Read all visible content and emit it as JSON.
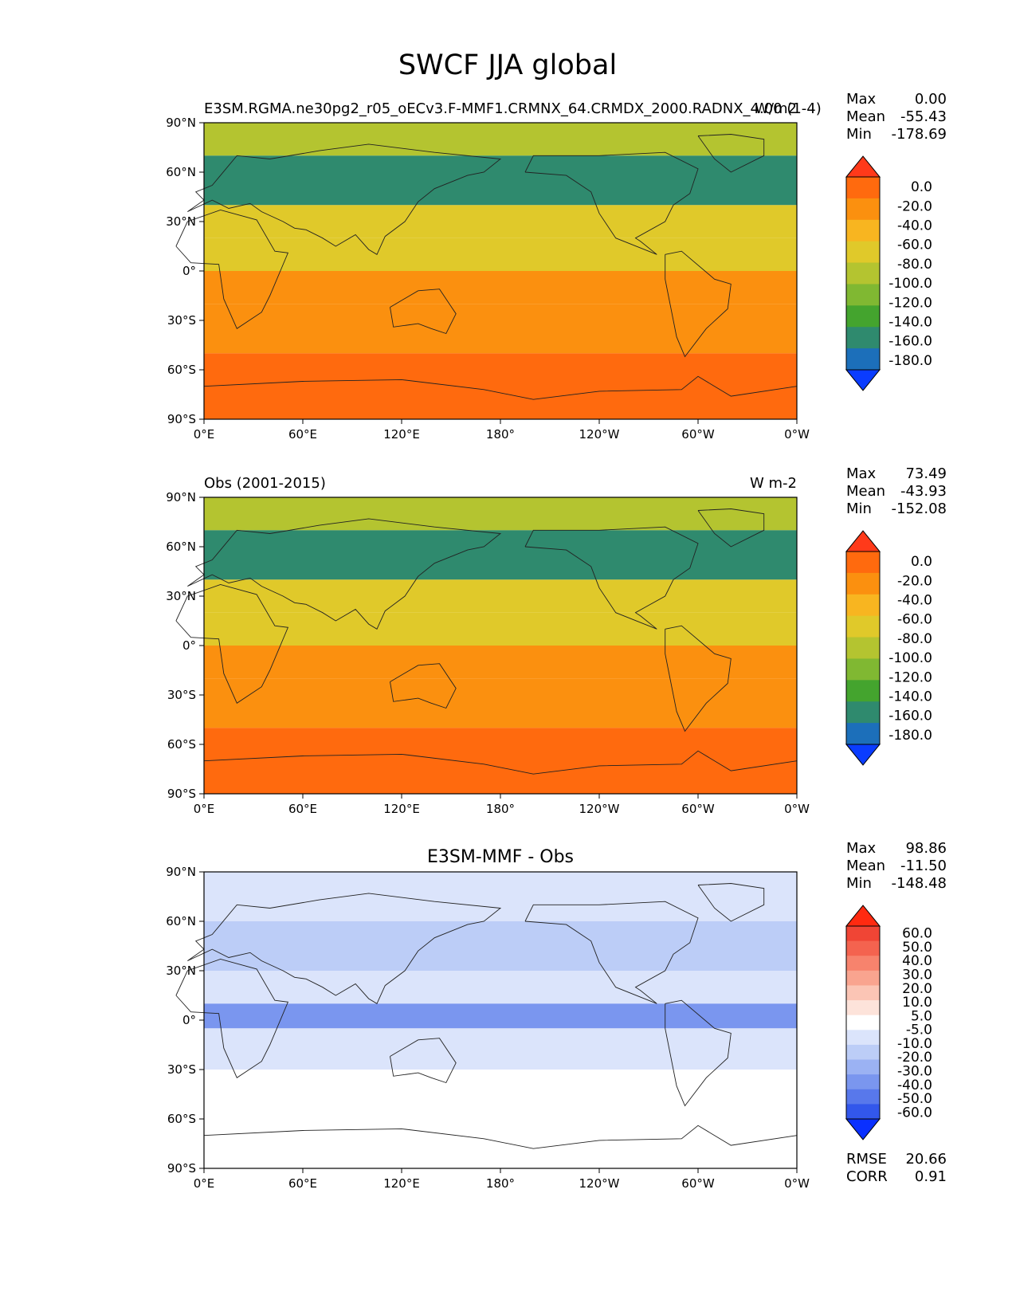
{
  "figure": {
    "title": "SWCF JJA global"
  },
  "chart_data": [
    {
      "type": "heatmap",
      "title_left": "E3SM.RGMA.ne30pg2_r05_oECv3.F-MMF1.CRMNX_64.CRMDX_2000.RADNX_4.00 (1-4)",
      "title_center": "",
      "units": "W/m2",
      "x_ticks": [
        "0°E",
        "60°E",
        "120°E",
        "180°",
        "120°W",
        "60°W",
        "0°W"
      ],
      "y_ticks": [
        "90°N",
        "60°N",
        "30°N",
        "0°",
        "30°S",
        "60°S",
        "90°S"
      ],
      "xlim": [
        0,
        360
      ],
      "ylim": [
        -90,
        90
      ],
      "stats": [
        {
          "label": "Max",
          "value": "0.00"
        },
        {
          "label": "Mean",
          "value": "-55.43"
        },
        {
          "label": "Min",
          "value": "-178.69"
        }
      ],
      "colorbar": {
        "levels": [
          "0.0",
          "-20.0",
          "-40.0",
          "-60.0",
          "-80.0",
          "-100.0",
          "-120.0",
          "-140.0",
          "-160.0",
          "-180.0"
        ],
        "colors": [
          "#ff3a1a",
          "#ff6a0e",
          "#fb900f",
          "#f8b520",
          "#e0c92a",
          "#b4c430",
          "#80b832",
          "#44a42e",
          "#2f8a6e",
          "#1c6fba",
          "#0a3cff"
        ]
      },
      "extra_stats": []
    },
    {
      "type": "heatmap",
      "title_left": "Obs (2001-2015)",
      "title_center": "",
      "units": "W m-2",
      "x_ticks": [
        "0°E",
        "60°E",
        "120°E",
        "180°",
        "120°W",
        "60°W",
        "0°W"
      ],
      "y_ticks": [
        "90°N",
        "60°N",
        "30°N",
        "0°",
        "30°S",
        "60°S",
        "90°S"
      ],
      "xlim": [
        0,
        360
      ],
      "ylim": [
        -90,
        90
      ],
      "stats": [
        {
          "label": "Max",
          "value": "73.49"
        },
        {
          "label": "Mean",
          "value": "-43.93"
        },
        {
          "label": "Min",
          "value": "-152.08"
        }
      ],
      "colorbar": {
        "levels": [
          "0.0",
          "-20.0",
          "-40.0",
          "-60.0",
          "-80.0",
          "-100.0",
          "-120.0",
          "-140.0",
          "-160.0",
          "-180.0"
        ],
        "colors": [
          "#ff3a1a",
          "#ff6a0e",
          "#fb900f",
          "#f8b520",
          "#e0c92a",
          "#b4c430",
          "#80b832",
          "#44a42e",
          "#2f8a6e",
          "#1c6fba",
          "#0a3cff"
        ]
      },
      "extra_stats": []
    },
    {
      "type": "heatmap",
      "title_left": "",
      "title_center": "E3SM-MMF - Obs",
      "units": "",
      "x_ticks": [
        "0°E",
        "60°E",
        "120°E",
        "180°",
        "120°W",
        "60°W",
        "0°W"
      ],
      "y_ticks": [
        "90°N",
        "60°N",
        "30°N",
        "0°",
        "30°S",
        "60°S",
        "90°S"
      ],
      "xlim": [
        0,
        360
      ],
      "ylim": [
        -90,
        90
      ],
      "stats": [
        {
          "label": "Max",
          "value": "98.86"
        },
        {
          "label": "Mean",
          "value": "-11.50"
        },
        {
          "label": "Min",
          "value": "-148.48"
        }
      ],
      "colorbar": {
        "levels": [
          "60.0",
          "50.0",
          "40.0",
          "30.0",
          "20.0",
          "10.0",
          "5.0",
          "-5.0",
          "-10.0",
          "-20.0",
          "-30.0",
          "-40.0",
          "-50.0",
          "-60.0"
        ],
        "colors": [
          "#ff2a10",
          "#f04535",
          "#f4634f",
          "#f7836d",
          "#f9a48f",
          "#fbc5b5",
          "#fde3da",
          "#ffffff",
          "#dbe4fb",
          "#bccdf7",
          "#9bb2f3",
          "#7a96ef",
          "#5878eb",
          "#3257eb",
          "#0a30ff"
        ]
      },
      "extra_stats": [
        {
          "label": "RMSE",
          "value": "20.66"
        },
        {
          "label": "CORR",
          "value": "0.91"
        }
      ]
    }
  ]
}
